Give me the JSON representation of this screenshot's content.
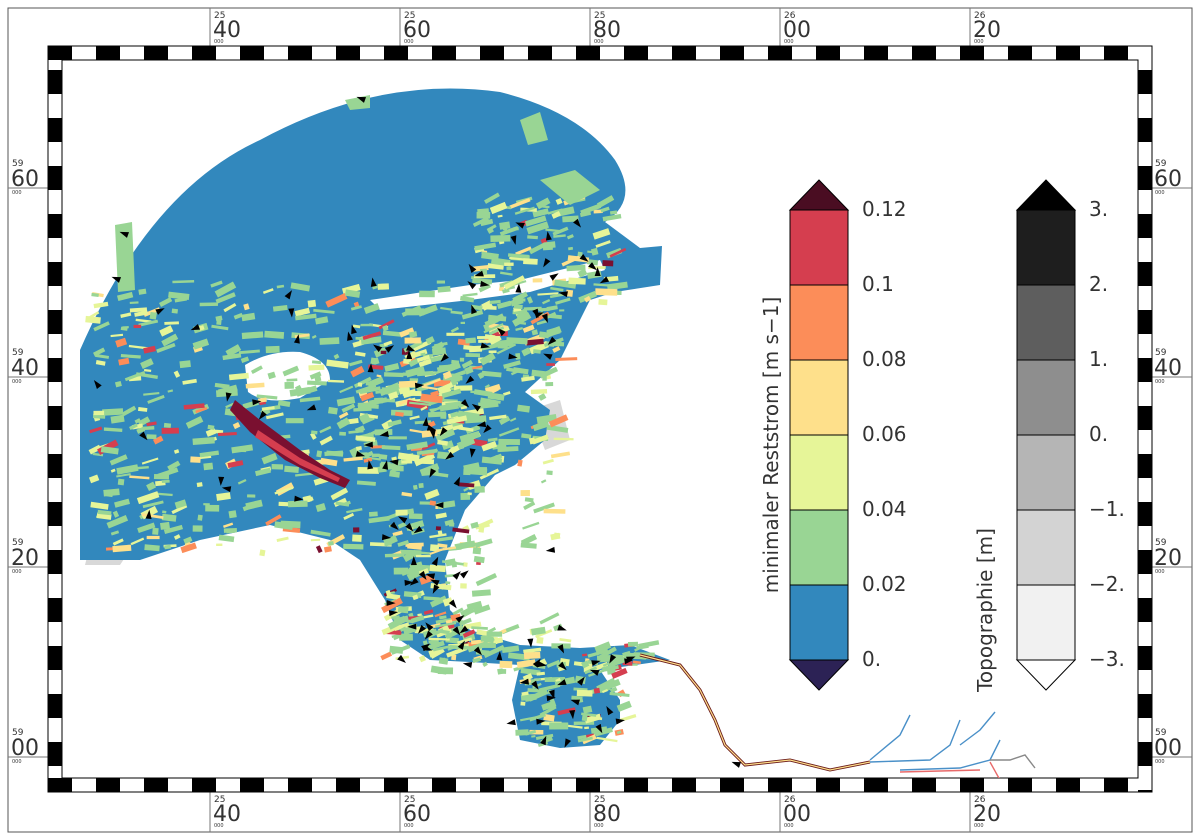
{
  "axes": {
    "x_ticks": [
      {
        "prefix": "25",
        "label": "40",
        "sub": "000"
      },
      {
        "prefix": "25",
        "label": "60",
        "sub": "000"
      },
      {
        "prefix": "25",
        "label": "80",
        "sub": "000"
      },
      {
        "prefix": "26",
        "label": "00",
        "sub": "000"
      },
      {
        "prefix": "26",
        "label": "20",
        "sub": "000"
      }
    ],
    "y_ticks": [
      {
        "prefix": "59",
        "label": "60",
        "sub": "000"
      },
      {
        "prefix": "59",
        "label": "40",
        "sub": "000"
      },
      {
        "prefix": "59",
        "label": "20",
        "sub": "000"
      },
      {
        "prefix": "59",
        "label": "00",
        "sub": "000"
      }
    ]
  },
  "colorbars": {
    "current": {
      "title": "minimaler Reststrom [m s−1]",
      "labels": [
        "0.12",
        "0.1",
        "0.08",
        "0.06",
        "0.04",
        "0.02",
        "0."
      ],
      "colors": {
        "over": "#4a0d22",
        "bins_top_to_bottom": [
          "#d53e4f",
          "#fc8d59",
          "#fee08b",
          "#e6f598",
          "#99d594",
          "#3288bd"
        ],
        "under": "#2c2255"
      }
    },
    "topography": {
      "title": "Topographie [m]",
      "labels": [
        "3.",
        "2.",
        "1.",
        "0.",
        "−1.",
        "−2.",
        "−3."
      ],
      "colors": {
        "over": "#000000",
        "bins_top_to_bottom": [
          "#1e1e1e",
          "#5e5e5e",
          "#8e8e8e",
          "#b5b5b5",
          "#d3d3d3",
          "#f1f1f1"
        ],
        "under": "#ffffff"
      }
    }
  },
  "map_colors": {
    "water_base": "#3288bd",
    "land_grey": "#d8d8d8",
    "arrow": "#000000",
    "river_branch": "#4a90c8",
    "river_red": "#e86a6a"
  }
}
